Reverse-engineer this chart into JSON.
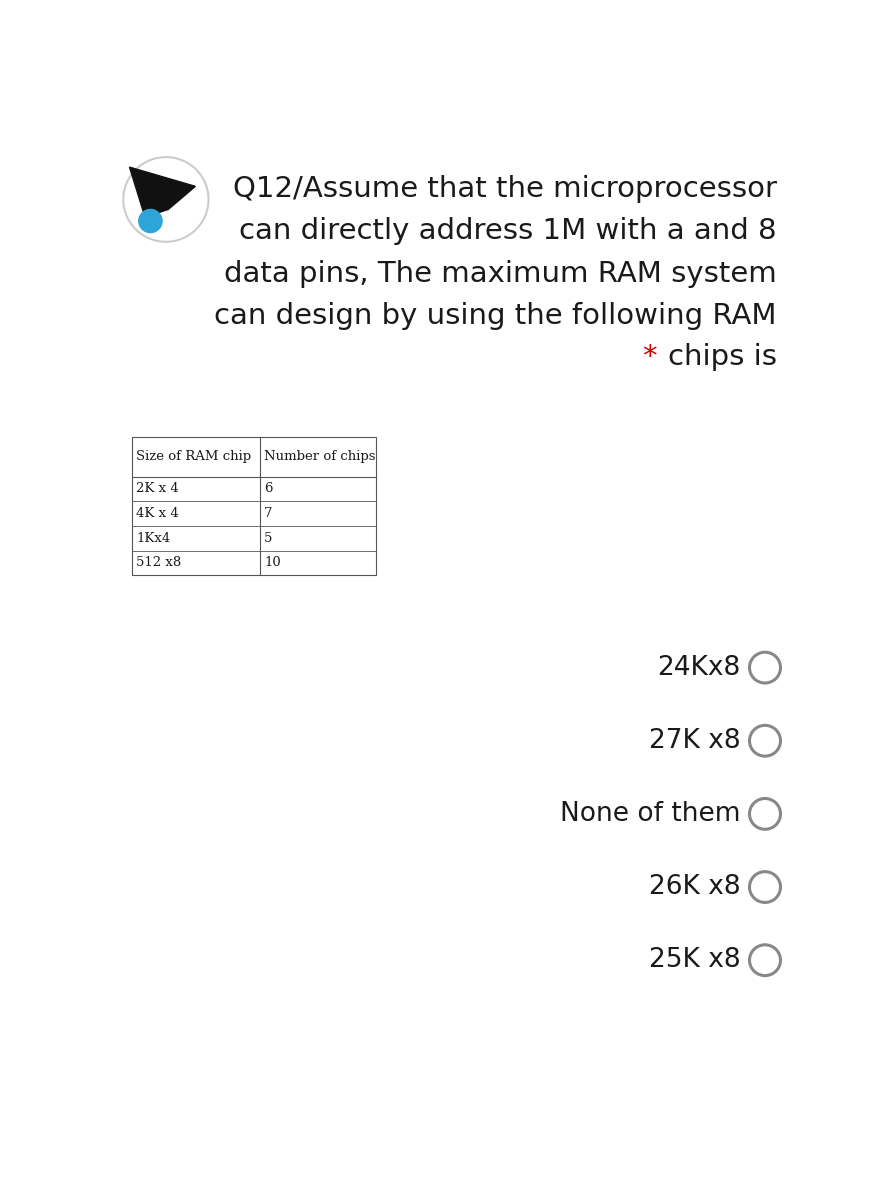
{
  "bg_color": "#ffffff",
  "question_lines": [
    "Q12/Assume that the microprocessor",
    "can directly address 1M with a and 8",
    "data pins, The maximum RAM system",
    "can design by using the following RAM",
    "chips is"
  ],
  "table_headers": [
    "Size of RAM chip",
    "Number of chips"
  ],
  "table_rows": [
    [
      "2K x 4",
      "6"
    ],
    [
      "4K x 4",
      "7"
    ],
    [
      "1Kx4",
      "5"
    ],
    [
      "512 x8",
      "10"
    ]
  ],
  "options": [
    "24Kx8",
    "27K x8",
    "None of them",
    "26K x8",
    "25K x8"
  ],
  "text_color": "#1a1a1a",
  "star_color": "#cc0000",
  "circle_color": "#888888",
  "table_font_size": 9.5,
  "question_font_size": 21,
  "option_font_size": 19
}
